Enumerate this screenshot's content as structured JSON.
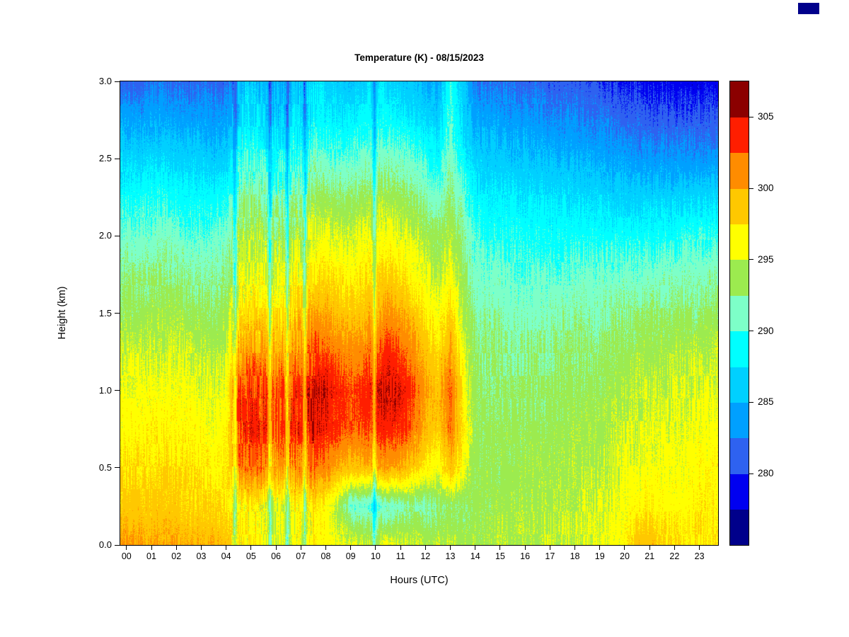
{
  "page": {
    "background": "#FFFFFF",
    "corner_swatch_color": "#00008B"
  },
  "chart_data": {
    "type": "heatmap",
    "title": "Temperature (K) - 08/15/2023",
    "xlabel": "Hours (UTC)",
    "ylabel": "Height (km)",
    "x_tick_labels": [
      "00",
      "01",
      "02",
      "03",
      "04",
      "05",
      "06",
      "07",
      "08",
      "09",
      "10",
      "11",
      "12",
      "13",
      "14",
      "15",
      "16",
      "17",
      "18",
      "19",
      "20",
      "21",
      "22",
      "23"
    ],
    "y_tick_labels": [
      "0.0",
      "0.5",
      "1.0",
      "1.5",
      "2.0",
      "2.5",
      "3.0"
    ],
    "x_range_hours": [
      0,
      24
    ],
    "y_range_km": [
      0,
      3
    ],
    "colorbar": {
      "min_K": 275,
      "max_K": 307.5,
      "band_step_K": 2.5,
      "tick_values": [
        280,
        285,
        290,
        295,
        300,
        305
      ],
      "palette": [
        "#00008B",
        "#0000F0",
        "#2E62F0",
        "#00A0FF",
        "#00D0FF",
        "#00FFFF",
        "#7DFFC8",
        "#9CEB4F",
        "#FFFF00",
        "#FFC800",
        "#FF8C00",
        "#FF1E00",
        "#8B0000"
      ]
    },
    "grid": {
      "hour_start": 0,
      "hour_step": 0.5,
      "height_start_km": 0,
      "height_step_km": 0.25,
      "orientation": "temperature_K_columns[hour_index][height_index], heights bottom to top",
      "temperature_K_columns": [
        [
          300.5,
          298.5,
          297.5,
          296.5,
          296,
          295,
          293.5,
          292.5,
          291,
          289,
          287,
          284,
          281.5
        ],
        [
          300.5,
          298.5,
          297.5,
          296.5,
          296,
          295,
          293.5,
          292.5,
          291,
          289,
          286.5,
          284,
          281.5
        ],
        [
          300,
          298.5,
          297.5,
          297,
          296,
          295,
          294,
          292.5,
          291,
          289.5,
          287,
          284.5,
          282
        ],
        [
          300,
          298.5,
          298,
          297,
          296,
          295,
          294,
          293,
          291.5,
          289.5,
          287,
          284.5,
          282
        ],
        [
          300,
          298.5,
          297.5,
          296.5,
          296,
          295,
          294,
          292.5,
          291,
          289,
          286.5,
          284,
          281.5
        ],
        [
          299.5,
          298,
          297.5,
          296.5,
          296,
          295,
          293.5,
          292,
          290.5,
          288.5,
          286.5,
          284,
          281.5
        ],
        [
          299.5,
          298,
          297,
          296.5,
          295.5,
          294.5,
          293.5,
          292,
          290.5,
          288.5,
          286.5,
          284,
          282
        ],
        [
          299.5,
          298,
          297,
          296,
          295.5,
          294.5,
          293,
          292,
          290.5,
          288.5,
          286,
          283.5,
          281.5
        ],
        [
          299,
          297.5,
          297,
          296.5,
          296,
          295,
          294,
          292.5,
          291,
          289,
          286.5,
          284,
          281.5
        ],
        [
          297,
          296,
          301,
          303,
          303.5,
          300,
          297,
          295.5,
          294,
          292,
          289.5,
          287,
          285
        ],
        [
          297,
          296.5,
          302,
          304,
          303.5,
          301,
          298,
          296,
          294.5,
          292.5,
          290,
          288,
          286
        ],
        [
          296.5,
          296,
          301.5,
          303.5,
          303,
          300,
          297.5,
          295.5,
          294,
          292,
          289.5,
          287,
          285
        ],
        [
          295,
          295.5,
          300,
          302.5,
          302.5,
          299.5,
          297,
          295,
          293.5,
          291.5,
          289,
          286.5,
          284.5
        ],
        [
          295.5,
          296,
          301,
          303.5,
          303,
          300.5,
          298,
          296,
          294,
          292,
          289.5,
          287,
          285
        ],
        [
          296,
          296.5,
          301,
          303.5,
          303.5,
          301,
          298.5,
          296.5,
          294.5,
          292.5,
          290,
          287.5,
          285.5
        ],
        [
          296.5,
          297,
          302,
          304.5,
          305,
          303,
          300,
          297.5,
          295.5,
          293.5,
          291,
          288.5,
          287
        ],
        [
          296.5,
          296.5,
          301.5,
          304,
          305,
          302.5,
          300,
          297.5,
          295.5,
          293.5,
          291,
          288.5,
          287
        ],
        [
          296,
          294,
          300,
          303,
          303.5,
          301.5,
          299,
          297,
          295,
          293,
          290.5,
          288,
          286
        ],
        [
          295.5,
          291,
          299,
          302.5,
          303,
          301,
          298.5,
          296.5,
          295,
          293,
          290.5,
          288,
          286
        ],
        [
          295,
          290.5,
          299.5,
          302.5,
          303.5,
          301.5,
          299,
          297,
          295.5,
          293.5,
          291,
          288.5,
          286
        ],
        [
          295,
          290.5,
          300,
          303.5,
          304.5,
          302.5,
          300,
          298,
          296,
          294,
          291.5,
          289,
          287
        ],
        [
          295.5,
          291,
          300.5,
          304,
          305.5,
          303.5,
          300.5,
          298,
          296,
          294,
          291.5,
          289,
          287
        ],
        [
          295.5,
          291.5,
          300,
          303.5,
          304.5,
          302.5,
          300,
          297.5,
          295.5,
          293.5,
          291,
          288.5,
          286
        ],
        [
          295,
          292,
          298.5,
          302,
          303,
          301,
          298.5,
          296.5,
          295,
          293,
          290.5,
          288,
          285.5
        ],
        [
          294.5,
          292,
          297,
          300,
          300.5,
          299,
          297,
          295.5,
          294,
          292,
          289.5,
          287,
          284.5
        ],
        [
          294.5,
          292.5,
          296,
          298.5,
          299,
          297.5,
          296,
          294.5,
          293,
          291,
          288.5,
          286,
          284
        ],
        [
          294.5,
          293,
          299,
          302,
          302.5,
          300.5,
          298,
          296,
          294.5,
          293,
          291.5,
          290.5,
          289.5
        ],
        [
          294,
          293,
          296,
          297.5,
          297,
          296,
          294.5,
          293.5,
          292.5,
          291,
          289,
          287,
          285.5
        ],
        [
          294,
          293.5,
          293.5,
          293.5,
          293.5,
          293,
          292,
          291,
          290,
          288.5,
          286.5,
          284.5,
          282.5
        ],
        [
          294,
          293.5,
          293.5,
          293.5,
          293,
          292.5,
          292,
          291,
          289.5,
          288,
          286,
          284,
          282.5
        ],
        [
          294.5,
          294,
          293.5,
          293.5,
          293,
          292.5,
          292,
          291,
          289.5,
          288,
          286,
          284,
          282
        ],
        [
          294.5,
          294,
          293.5,
          293.5,
          293,
          292.5,
          291.5,
          290.5,
          289.5,
          288,
          285.5,
          283.5,
          281.5
        ],
        [
          294.5,
          294,
          294,
          293.5,
          293,
          292.5,
          291.5,
          290.5,
          289,
          287.5,
          285.5,
          283.5,
          281.5
        ],
        [
          294.5,
          294,
          294,
          293.5,
          293,
          292.5,
          291.5,
          290.5,
          289,
          287.5,
          285.5,
          283.5,
          281.5
        ],
        [
          295,
          294.5,
          294,
          293.5,
          293,
          292.5,
          291.5,
          290.5,
          289,
          287.5,
          285,
          283,
          281
        ],
        [
          295,
          294.5,
          294,
          293.5,
          293.5,
          293,
          292,
          290.5,
          289,
          287.5,
          285,
          283,
          281
        ],
        [
          295,
          294.5,
          294.5,
          294,
          293.5,
          293,
          292,
          291,
          289,
          287,
          285,
          283,
          281
        ],
        [
          295.5,
          295,
          294.5,
          294,
          293.5,
          293,
          292,
          291,
          289,
          287,
          284.5,
          282.5,
          280.5
        ],
        [
          295.5,
          295,
          294.5,
          294,
          293.5,
          293,
          292,
          291,
          289,
          287,
          284.5,
          282.5,
          280.5
        ],
        [
          296,
          295.5,
          295,
          294.5,
          294,
          293.5,
          292.5,
          291,
          289,
          286.5,
          284,
          282,
          280
        ],
        [
          296.5,
          296,
          295.5,
          295,
          294.5,
          293.5,
          292.5,
          291,
          289,
          286.5,
          284,
          281.5,
          279.5
        ],
        [
          299,
          296.5,
          295.5,
          295,
          294.5,
          294,
          292.5,
          291,
          289,
          286.5,
          283.5,
          281.5,
          279.5
        ],
        [
          299.5,
          297,
          296,
          295.5,
          295,
          294,
          293,
          291,
          289,
          286.5,
          283.5,
          281,
          279
        ],
        [
          298,
          296.5,
          296,
          295.5,
          295,
          294,
          293,
          291.5,
          289,
          286.5,
          283.5,
          281,
          279
        ],
        [
          297.5,
          296.5,
          296,
          295.5,
          295,
          294.5,
          293,
          291.5,
          289,
          286.5,
          283.5,
          281,
          278.5
        ],
        [
          297.5,
          296.5,
          296,
          295.5,
          295,
          294.5,
          293,
          291.5,
          289.5,
          286.5,
          283.5,
          281,
          278.5
        ],
        [
          297.5,
          297,
          296.5,
          296,
          295.5,
          294.5,
          293,
          291.5,
          289.5,
          287,
          283.5,
          281,
          278.5
        ],
        [
          297.5,
          297,
          296.5,
          296,
          295.5,
          294.5,
          293.5,
          292,
          289.5,
          287,
          283.5,
          281,
          278.5
        ]
      ]
    },
    "texture": {
      "noise_streak_K": 1.0,
      "noise_pixel_K": 0.7,
      "plume_streak_boost": 1.8,
      "plume_hours": [
        4.2,
        7.6
      ],
      "cold_slit_hours": [
        4.35,
        5.75,
        6.45,
        7.15,
        9.95
      ],
      "cold_slit_depth_K": 4.5,
      "cold_slit_sigma_h": 0.055
    }
  }
}
